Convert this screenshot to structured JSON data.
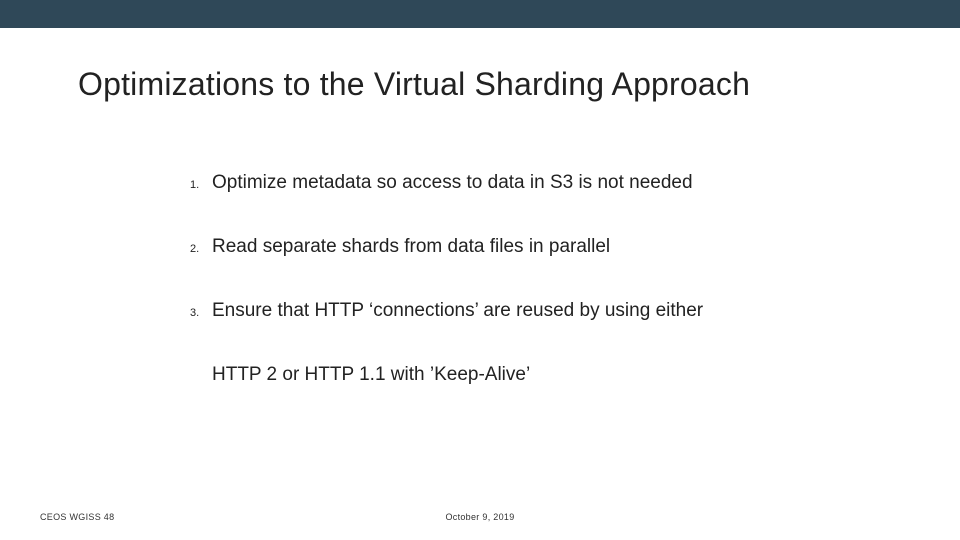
{
  "colors": {
    "top_bar_bg": "#2f4858",
    "page_bg": "#ffffff",
    "text_color": "#222222",
    "footer_color": "#333333"
  },
  "typography": {
    "title_fontsize": 32,
    "body_fontsize": 19,
    "number_fontsize": 11,
    "footer_fontsize": 9,
    "font_family": "Arial"
  },
  "title": "Optimizations to the Virtual Sharding Approach",
  "items": [
    {
      "num": "1.",
      "text": "Optimize metadata so access to data in S3 is not needed"
    },
    {
      "num": "2.",
      "text": "Read separate shards from data files in parallel"
    },
    {
      "num": "3.",
      "text": "Ensure that HTTP ‘connections’ are reused by using either"
    }
  ],
  "continuation": "HTTP 2 or HTTP 1.1 with ’Keep-Alive’",
  "footer": {
    "left": "CEOS WGISS 48",
    "center": "October 9, 2019"
  }
}
